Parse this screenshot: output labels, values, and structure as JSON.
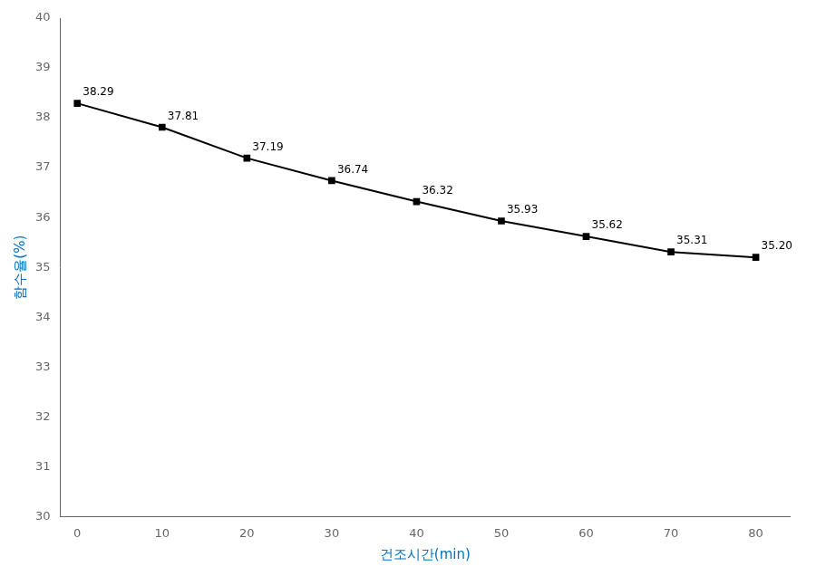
{
  "chart_data": {
    "type": "line",
    "x": [
      0,
      10,
      20,
      30,
      40,
      50,
      60,
      70,
      80
    ],
    "values": [
      38.29,
      37.81,
      37.19,
      36.74,
      36.32,
      35.93,
      35.62,
      35.31,
      35.2
    ],
    "value_labels": [
      "38.29",
      "37.81",
      "37.19",
      "36.74",
      "36.32",
      "35.93",
      "35.62",
      "35.31",
      "35.20"
    ],
    "data_labels": true,
    "xlabel": "건조시간(min)",
    "ylabel": "함수율(%)",
    "xlim": [
      -2,
      84
    ],
    "xticks": [
      0,
      10,
      20,
      30,
      40,
      50,
      60,
      70,
      80
    ],
    "ylim": [
      30,
      40
    ],
    "yticks": [
      30,
      31,
      32,
      33,
      34,
      35,
      36,
      37,
      38,
      39,
      40
    ],
    "color": "#000000",
    "marker": "square",
    "grid": false
  }
}
